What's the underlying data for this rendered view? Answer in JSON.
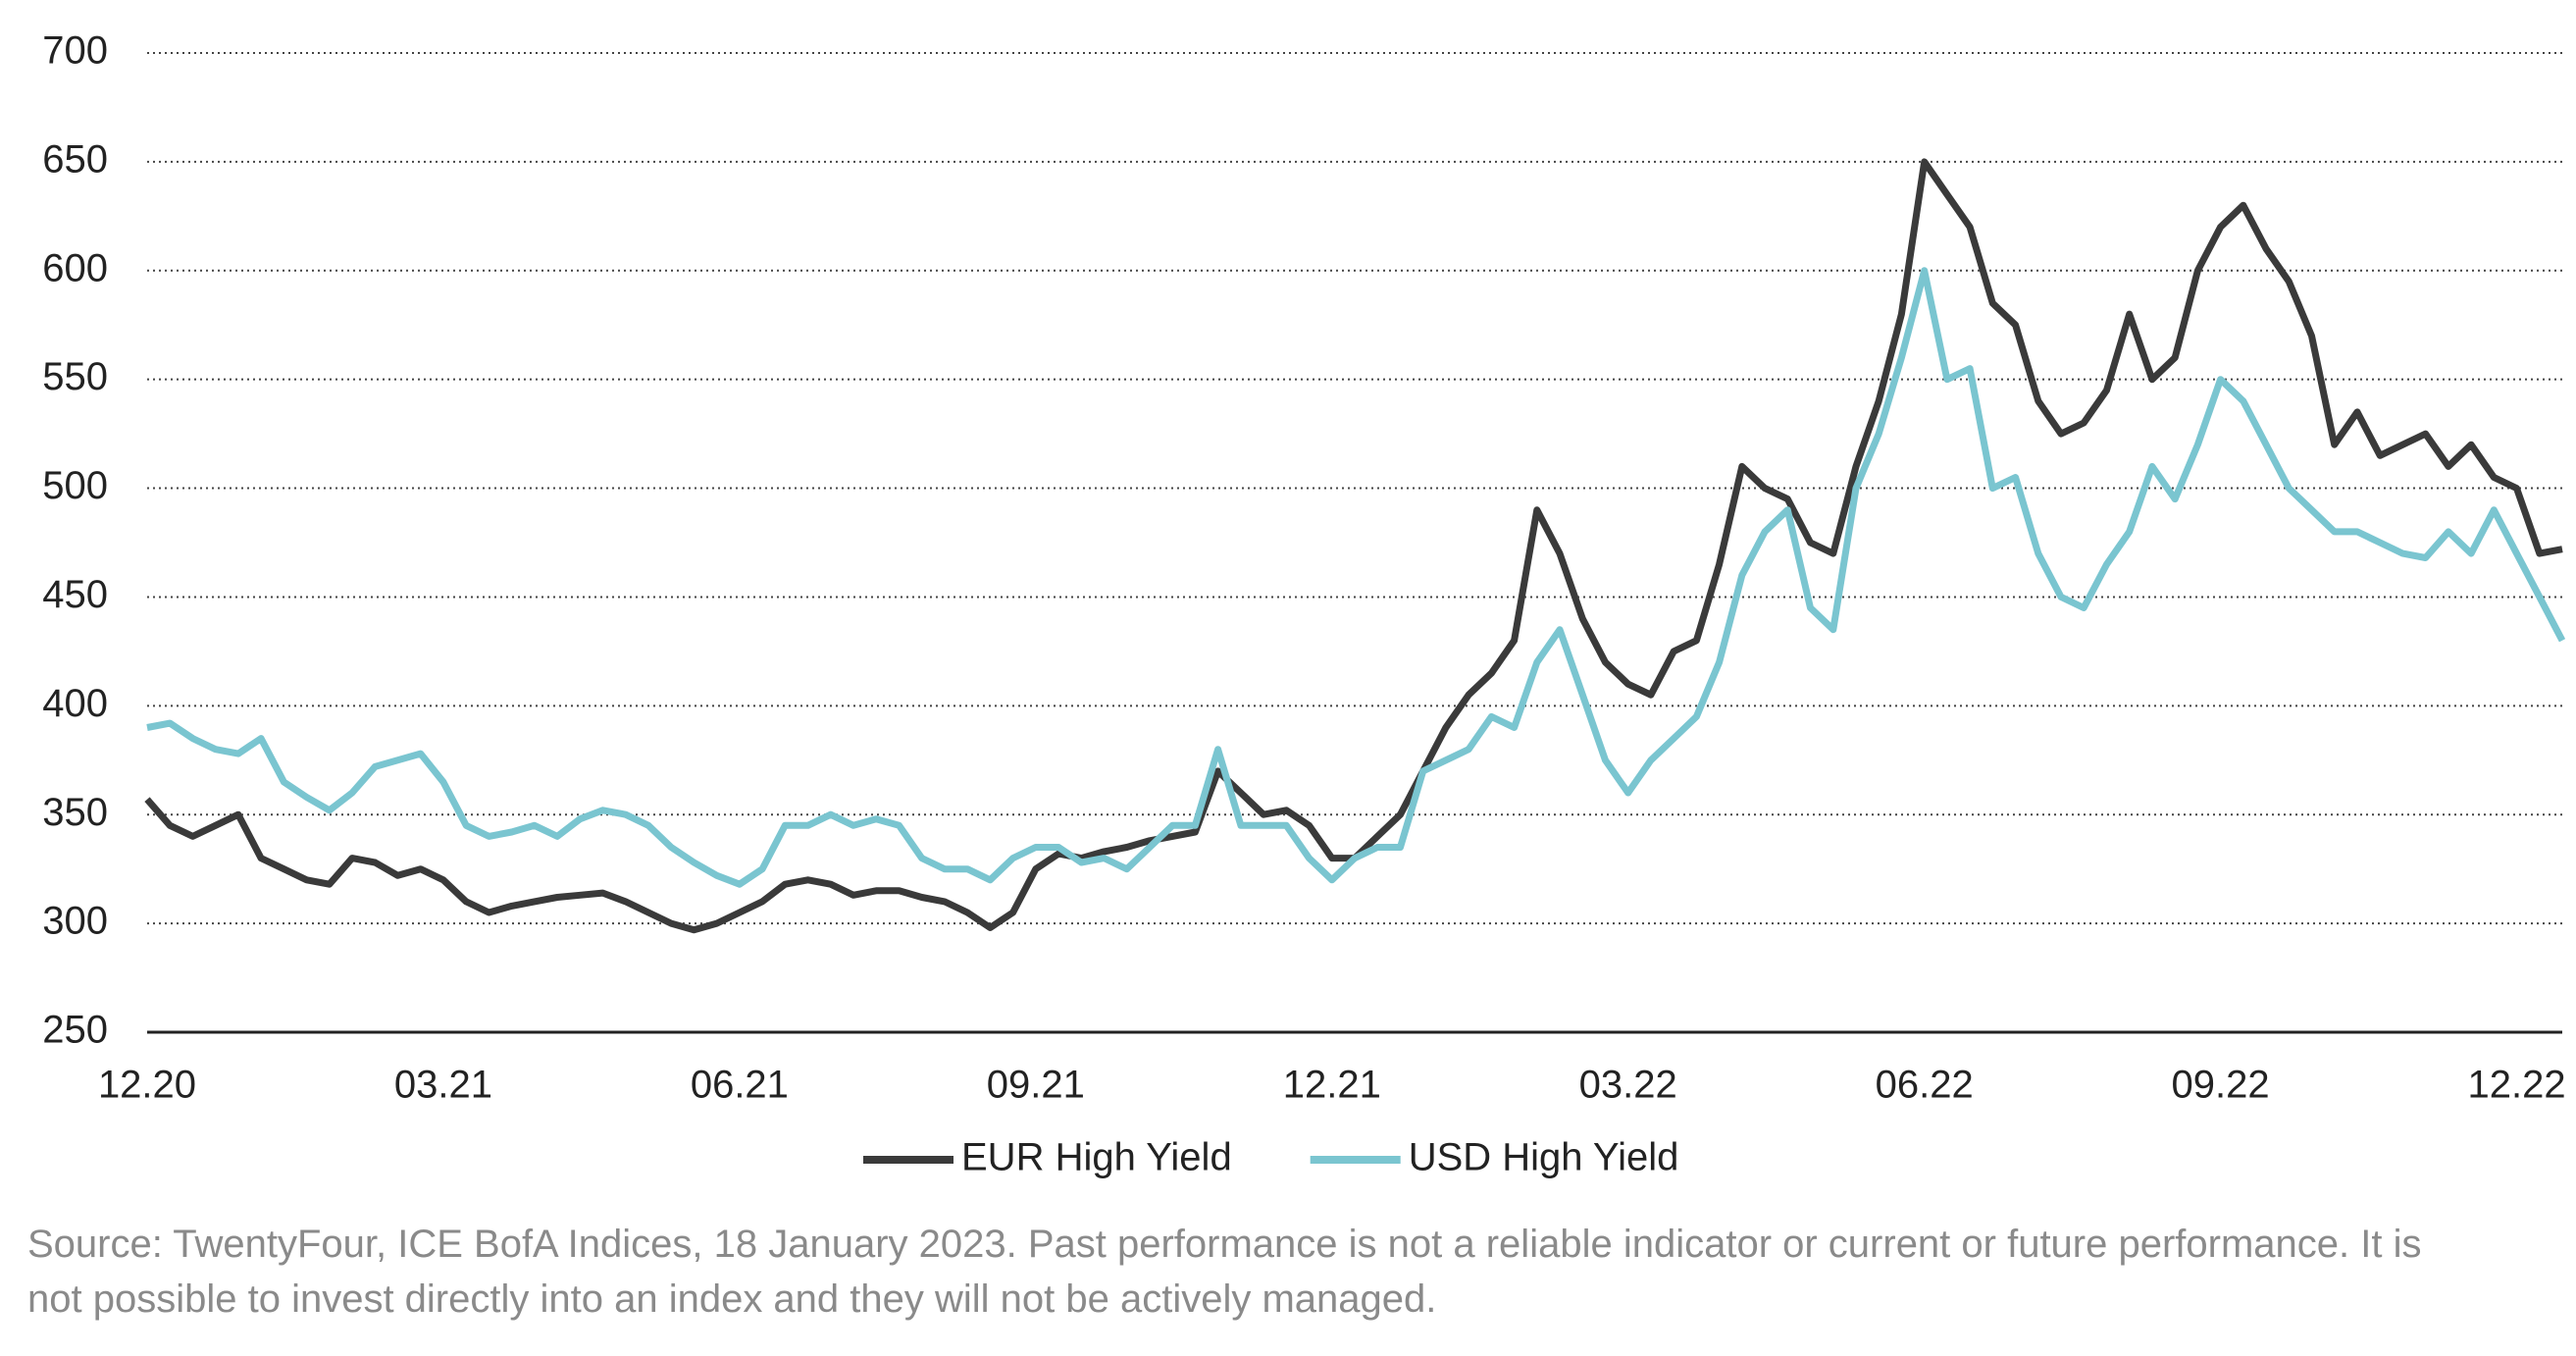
{
  "chart_data": {
    "type": "line",
    "categories": [
      "12.20",
      null,
      null,
      null,
      null,
      null,
      null,
      null,
      null,
      null,
      null,
      null,
      null,
      "03.21",
      null,
      null,
      null,
      null,
      null,
      null,
      null,
      null,
      null,
      null,
      null,
      null,
      "06.21",
      null,
      null,
      null,
      null,
      null,
      null,
      null,
      null,
      null,
      null,
      null,
      null,
      "09.21",
      null,
      null,
      null,
      null,
      null,
      null,
      null,
      null,
      null,
      null,
      null,
      null,
      "12.21",
      null,
      null,
      null,
      null,
      null,
      null,
      null,
      null,
      null,
      null,
      null,
      null,
      "03.22",
      null,
      null,
      null,
      null,
      null,
      null,
      null,
      null,
      null,
      null,
      null,
      null,
      "06.22",
      null,
      null,
      null,
      null,
      null,
      null,
      null,
      null,
      null,
      null,
      null,
      null,
      "09.22",
      null,
      null,
      null,
      null,
      null,
      null,
      null,
      null,
      null,
      null,
      null,
      null,
      "12.22",
      null,
      null
    ],
    "series": [
      {
        "name": "EUR High Yield",
        "color": "#3a3a3a",
        "values": [
          357,
          345,
          340,
          345,
          350,
          330,
          325,
          320,
          318,
          330,
          328,
          322,
          325,
          320,
          310,
          305,
          308,
          310,
          312,
          313,
          314,
          310,
          305,
          300,
          297,
          300,
          305,
          310,
          318,
          320,
          318,
          313,
          315,
          315,
          312,
          310,
          305,
          298,
          305,
          325,
          332,
          330,
          333,
          335,
          338,
          340,
          342,
          370,
          360,
          350,
          352,
          345,
          330,
          330,
          340,
          350,
          370,
          390,
          405,
          415,
          430,
          490,
          470,
          440,
          420,
          410,
          405,
          425,
          430,
          465,
          510,
          500,
          495,
          475,
          470,
          510,
          540,
          580,
          650,
          635,
          620,
          585,
          575,
          540,
          525,
          530,
          545,
          580,
          550,
          560,
          600,
          620,
          630,
          610,
          595,
          570,
          520,
          535,
          515,
          520,
          525,
          510,
          520,
          505,
          500,
          470,
          472
        ]
      },
      {
        "name": "USD High Yield",
        "color": "#7ac5d0",
        "values": [
          390,
          392,
          385,
          380,
          378,
          385,
          365,
          358,
          352,
          360,
          372,
          375,
          378,
          365,
          345,
          340,
          342,
          345,
          340,
          348,
          352,
          350,
          345,
          335,
          328,
          322,
          318,
          325,
          345,
          345,
          350,
          345,
          348,
          345,
          330,
          325,
          325,
          320,
          330,
          335,
          335,
          328,
          330,
          325,
          335,
          345,
          345,
          380,
          345,
          345,
          345,
          330,
          320,
          330,
          335,
          335,
          370,
          375,
          380,
          395,
          390,
          420,
          435,
          405,
          375,
          360,
          375,
          385,
          395,
          420,
          460,
          480,
          490,
          445,
          435,
          500,
          525,
          560,
          600,
          550,
          555,
          500,
          505,
          470,
          450,
          445,
          465,
          480,
          510,
          495,
          520,
          550,
          540,
          520,
          500,
          490,
          480,
          480,
          475,
          470,
          468,
          480,
          470,
          490,
          470,
          450,
          430
        ]
      }
    ],
    "ylim": [
      250,
      700
    ],
    "yticks": [
      250,
      300,
      350,
      400,
      450,
      500,
      550,
      600,
      650,
      700
    ],
    "grid": true,
    "legend": "bottom",
    "source": "Source: TwentyFour, ICE BofA Indices, 18 January 2023. Past performance is not a reliable indicator or current or future performance. It is not possible to invest directly into an index and they will not be actively managed."
  }
}
